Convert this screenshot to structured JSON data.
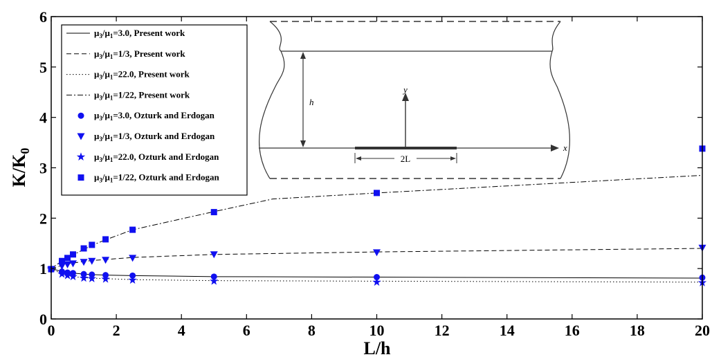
{
  "chart_data": {
    "type": "line",
    "xlabel": "L/h",
    "ylabel": "K/K",
    "ylabel_sub": "0",
    "xlim": [
      0,
      20
    ],
    "ylim": [
      0,
      6
    ],
    "x_ticks": [
      "0",
      "2",
      "4",
      "6",
      "8",
      "10",
      "12",
      "14",
      "16",
      "18",
      "20"
    ],
    "y_ticks": [
      "0",
      "1",
      "2",
      "3",
      "4",
      "5",
      "6"
    ],
    "grid": false,
    "legend_position": "top-left",
    "series": [
      {
        "name_parts": [
          "μ",
          "3",
          "/μ",
          "1",
          "=3.0, Present work"
        ],
        "kind": "line",
        "dash": "solid",
        "color": "#000000",
        "x": [
          0,
          0.33,
          0.5,
          0.67,
          1,
          1.25,
          1.67,
          2.5,
          5,
          10,
          20
        ],
        "y": [
          1.0,
          0.94,
          0.92,
          0.91,
          0.89,
          0.88,
          0.87,
          0.86,
          0.84,
          0.83,
          0.81
        ]
      },
      {
        "name_parts": [
          "μ",
          "3",
          "/μ",
          "1",
          "=1/3, Present work"
        ],
        "kind": "line",
        "dash": "dashed",
        "color": "#000000",
        "x": [
          0,
          0.33,
          0.5,
          0.67,
          1,
          1.25,
          1.67,
          2.5,
          5,
          10,
          20
        ],
        "y": [
          1.0,
          1.06,
          1.09,
          1.11,
          1.14,
          1.16,
          1.18,
          1.22,
          1.28,
          1.33,
          1.4
        ]
      },
      {
        "name_parts": [
          "μ",
          "3",
          "/μ",
          "1",
          "=22.0, Present work"
        ],
        "kind": "line",
        "dash": "dotted",
        "color": "#000000",
        "x": [
          0,
          0.33,
          0.5,
          0.67,
          1,
          1.25,
          1.67,
          2.5,
          5,
          10,
          20
        ],
        "y": [
          1.0,
          0.89,
          0.86,
          0.84,
          0.82,
          0.81,
          0.8,
          0.78,
          0.76,
          0.75,
          0.73
        ]
      },
      {
        "name_parts": [
          "μ",
          "3",
          "/μ",
          "1",
          "=1/22, Present work"
        ],
        "kind": "line",
        "dash": "dashdot",
        "color": "#000000",
        "x": [
          0,
          0.33,
          0.5,
          0.67,
          1,
          1.25,
          1.67,
          2.5,
          5,
          6.8,
          10,
          20
        ],
        "y": [
          1.0,
          1.15,
          1.21,
          1.27,
          1.38,
          1.46,
          1.57,
          1.77,
          2.13,
          2.38,
          2.5,
          2.85
        ]
      },
      {
        "name_parts": [
          "μ",
          "3",
          "/μ",
          "1",
          "=3.0, Ozturk and Erdogan"
        ],
        "kind": "marker",
        "marker": "circle",
        "color": "#1010f0",
        "x": [
          0,
          0.33,
          0.5,
          0.67,
          1,
          1.25,
          1.67,
          2.5,
          5,
          10,
          20
        ],
        "y": [
          0.98,
          0.94,
          0.92,
          0.91,
          0.89,
          0.88,
          0.87,
          0.86,
          0.84,
          0.83,
          0.82
        ]
      },
      {
        "name_parts": [
          "μ",
          "3",
          "/μ",
          "1",
          "=1/3, Ozturk and Erdogan"
        ],
        "kind": "marker",
        "marker": "triangle-down",
        "color": "#1010f0",
        "x": [
          0,
          0.33,
          0.5,
          0.67,
          1,
          1.25,
          1.67,
          2.5,
          5,
          10,
          20
        ],
        "y": [
          0.98,
          1.05,
          1.08,
          1.1,
          1.13,
          1.15,
          1.17,
          1.21,
          1.28,
          1.32,
          1.41
        ]
      },
      {
        "name_parts": [
          "μ",
          "3",
          "/μ",
          "1",
          "=22.0, Ozturk and Erdogan"
        ],
        "kind": "marker",
        "marker": "star",
        "color": "#1010f0",
        "x": [
          0,
          0.33,
          0.5,
          0.67,
          1,
          1.25,
          1.67,
          2.5,
          5,
          10,
          20
        ],
        "y": [
          0.99,
          0.89,
          0.86,
          0.84,
          0.81,
          0.8,
          0.79,
          0.77,
          0.75,
          0.73,
          0.72
        ]
      },
      {
        "name_parts": [
          "μ",
          "3",
          "/μ",
          "1",
          "=1/22, Ozturk and Erdogan"
        ],
        "kind": "marker",
        "marker": "square",
        "color": "#1010f0",
        "x": [
          0,
          0.33,
          0.5,
          0.67,
          1,
          1.25,
          1.67,
          2.5,
          5,
          10,
          20
        ],
        "y": [
          0.99,
          1.15,
          1.21,
          1.28,
          1.4,
          1.47,
          1.58,
          1.77,
          2.12,
          2.5,
          3.38
        ]
      }
    ]
  },
  "inset": {
    "y_axis_label": "y",
    "x_axis_label": "x",
    "height_label": "h",
    "crack_label": "2L"
  }
}
